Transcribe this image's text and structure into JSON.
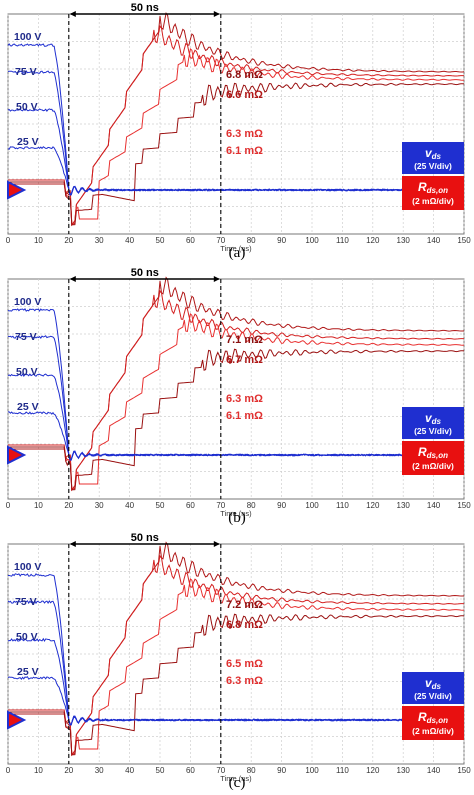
{
  "chart_data": [
    {
      "type": "line",
      "caption": "(a)",
      "xlabel": "Time (ns)",
      "xlim": [
        0,
        150
      ],
      "x_ticks": [
        "0",
        "10",
        "20",
        "30",
        "40",
        "50",
        "60",
        "70",
        "80",
        "90",
        "100",
        "110",
        "120",
        "130",
        "140",
        "150"
      ],
      "grid": true,
      "interval_label": "50 ns",
      "interval": [
        20,
        70
      ],
      "voltage_labels": [
        "100 V",
        "75 V",
        "50 V",
        "25 V"
      ],
      "resistance_labels": [
        "6.8 mΩ",
        "6.6 mΩ",
        "6.3 mΩ",
        "6.1 mΩ"
      ],
      "legend": {
        "vds_name": "v",
        "vds_sub": "ds",
        "vds_scale": "(25 V/div)",
        "rds_name": "R",
        "rds_sub": "ds,on",
        "rds_scale": "(2 mΩ/div)",
        "vds_color": "#1f2fd0",
        "rds_color": "#e81010"
      }
    },
    {
      "type": "line",
      "caption": "(b)",
      "xlabel": "Time (ns)",
      "xlim": [
        0,
        150
      ],
      "x_ticks": [
        "0",
        "10",
        "20",
        "30",
        "40",
        "50",
        "60",
        "70",
        "80",
        "90",
        "100",
        "110",
        "120",
        "130",
        "140",
        "150"
      ],
      "grid": true,
      "interval_label": "50 ns",
      "interval": [
        20,
        70
      ],
      "voltage_labels": [
        "100 V",
        "75 V",
        "50 V",
        "25 V"
      ],
      "resistance_labels": [
        "7.1 mΩ",
        "6.7 mΩ",
        "6.3 mΩ",
        "6.1 mΩ"
      ],
      "legend": {
        "vds_name": "v",
        "vds_sub": "ds",
        "vds_scale": "(25 V/div)",
        "rds_name": "R",
        "rds_sub": "ds,on",
        "rds_scale": "(2 mΩ/div)",
        "vds_color": "#1f2fd0",
        "rds_color": "#e81010"
      }
    },
    {
      "type": "line",
      "caption": "(c)",
      "xlabel": "Time (ns)",
      "xlim": [
        0,
        150
      ],
      "x_ticks": [
        "0",
        "10",
        "20",
        "30",
        "40",
        "50",
        "60",
        "70",
        "80",
        "90",
        "100",
        "110",
        "120",
        "130",
        "140",
        "150"
      ],
      "grid": true,
      "interval_label": "50 ns",
      "interval": [
        20,
        70
      ],
      "voltage_labels": [
        "100 V",
        "75 V",
        "50 V",
        "25 V"
      ],
      "resistance_labels": [
        "7.2 mΩ",
        "6.8 mΩ",
        "6.5 mΩ",
        "6.3 mΩ"
      ],
      "legend": {
        "vds_name": "v",
        "vds_sub": "ds",
        "vds_scale": "(25 V/div)",
        "rds_name": "R",
        "rds_sub": "ds,on",
        "rds_scale": "(2 mΩ/div)",
        "vds_color": "#1f2fd0",
        "rds_color": "#e81010"
      }
    }
  ]
}
